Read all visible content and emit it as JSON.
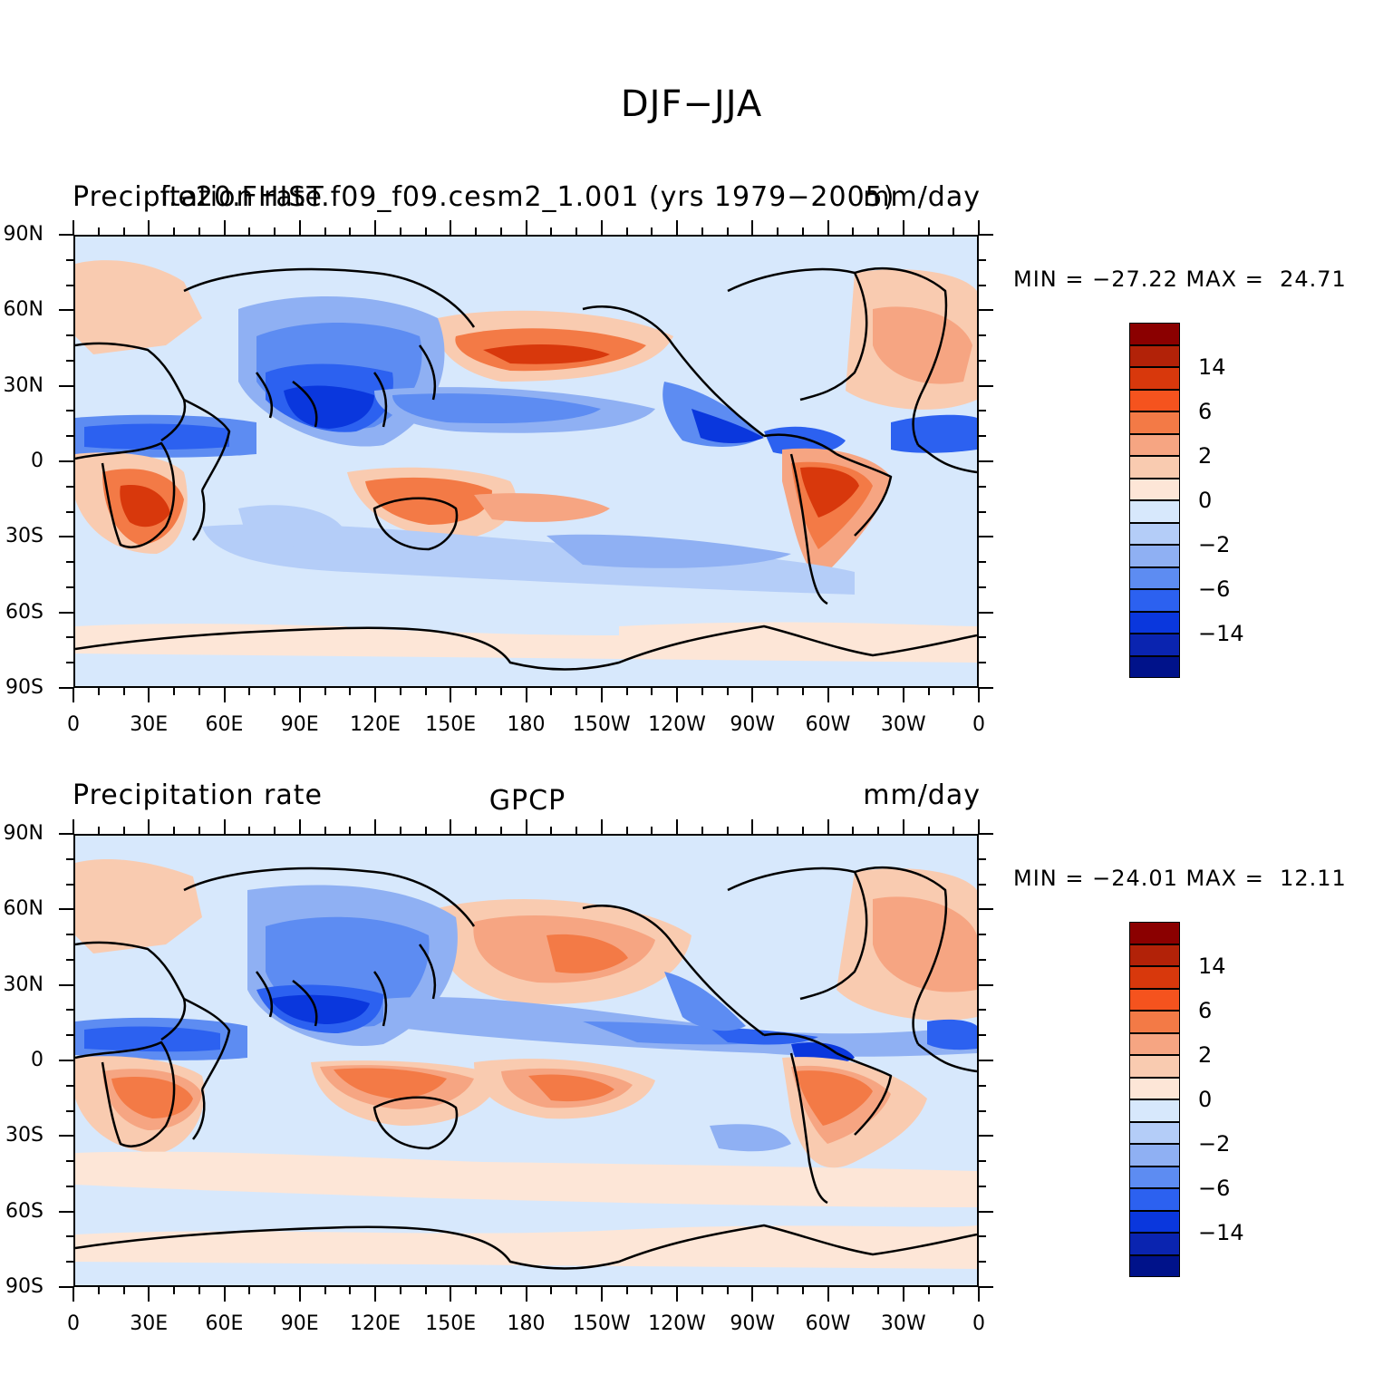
{
  "figure": {
    "title": "DJF−JJA"
  },
  "panels": [
    {
      "left_label": "Precipitation rate",
      "center_label": "f.e20.FHIST.f09_f09.cesm2_1.001 (yrs 1979−2005)",
      "right_label": "mm/day",
      "min_max": "MIN = −27.22 MAX =  24.71"
    },
    {
      "left_label": "Precipitation rate",
      "center_label": "GPCP",
      "right_label": "mm/day",
      "min_max": "MIN = −24.01 MAX =  12.11"
    }
  ],
  "axes": {
    "lat_ticks": [
      "90N",
      "60N",
      "30N",
      "0",
      "30S",
      "60S",
      "90S"
    ],
    "lon_ticks": [
      "0",
      "30E",
      "60E",
      "90E",
      "120E",
      "150E",
      "180",
      "150W",
      "120W",
      "90W",
      "60W",
      "30W",
      "0"
    ]
  },
  "colorbar": {
    "labels": [
      "14",
      "6",
      "2",
      "0",
      "−2",
      "−6",
      "−14"
    ],
    "colors": [
      "#8b0000",
      "#b22208",
      "#d8380c",
      "#f5531e",
      "#f37a46",
      "#f6a582",
      "#f9cbb0",
      "#fde6d7",
      "#d7e8fc",
      "#b4cdf8",
      "#8fb0f3",
      "#5d8cf2",
      "#2c61f0",
      "#0a37dd",
      "#0a24b0",
      "#00128a"
    ]
  },
  "palette": {
    "ocean_light_blue": "#d7e8fc",
    "light_peach": "#fde6d7",
    "mid_orange": "#f37a46",
    "deep_red": "#d8380c",
    "mid_blue": "#5d8cf2",
    "deep_blue": "#0a37dd",
    "coastline": "#000000"
  }
}
